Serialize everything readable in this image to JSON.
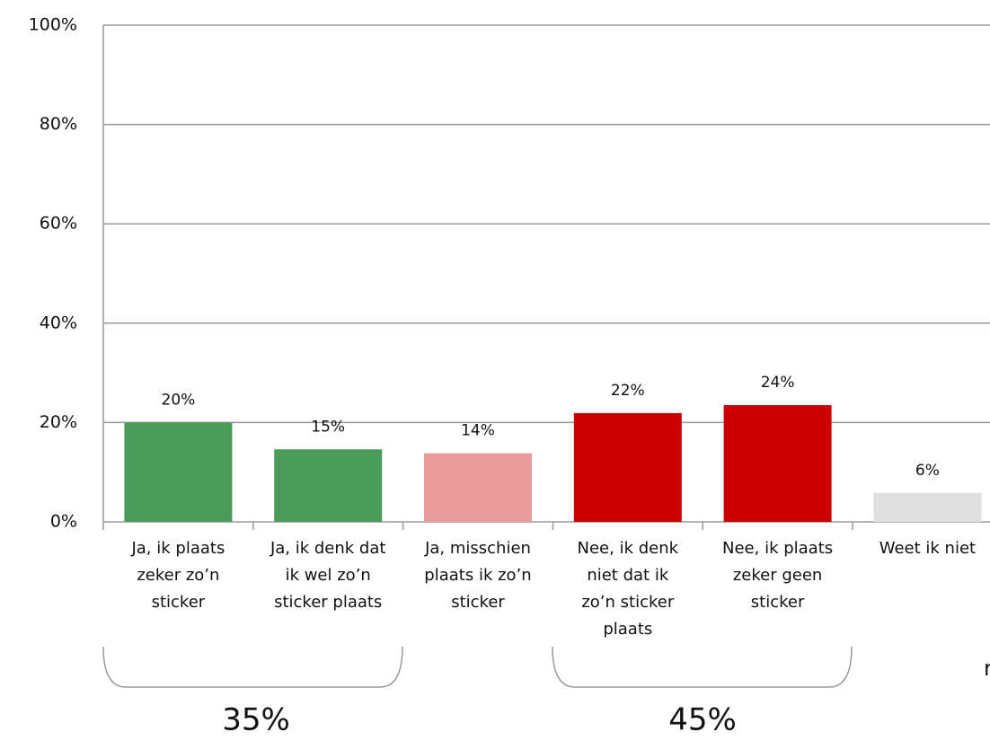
{
  "chart_data": {
    "type": "bar",
    "categories": [
      [
        "Ja, ik plaats",
        "zeker zo’n",
        "sticker"
      ],
      [
        "Ja, ik denk dat",
        "ik wel zo’n",
        "sticker plaats"
      ],
      [
        "Ja, misschien",
        "plaats ik zo’n",
        "sticker"
      ],
      [
        "Nee, ik denk",
        "niet dat ik",
        "zo’n sticker",
        "plaats"
      ],
      [
        "Nee, ik plaats",
        "zeker geen",
        "sticker"
      ],
      [
        "Weet ik niet"
      ]
    ],
    "values": [
      20,
      14.6,
      13.8,
      21.9,
      23.5,
      5.8
    ],
    "value_labels": [
      "20%",
      "15%",
      "14%",
      "22%",
      "24%",
      "6%"
    ],
    "colors": [
      "#4a9a5a",
      "#4a9a5a",
      "#e99a9a",
      "#cc0000",
      "#cc0000",
      "#e0e0e0"
    ],
    "ylim": [
      0,
      100
    ],
    "yticks": [
      {
        "value": 0,
        "label": "0%"
      },
      {
        "value": 20,
        "label": "20%"
      },
      {
        "value": 40,
        "label": "40%"
      },
      {
        "value": 60,
        "label": "60%"
      },
      {
        "value": 80,
        "label": "80%"
      },
      {
        "value": 100,
        "label": "100%"
      }
    ],
    "grid": true,
    "annotations": [
      {
        "text": "35%",
        "color": "#4a9a5a"
      },
      {
        "text": "45%",
        "color": "#cc0000"
      },
      {
        "text": "r",
        "color": "#999999"
      }
    ]
  }
}
